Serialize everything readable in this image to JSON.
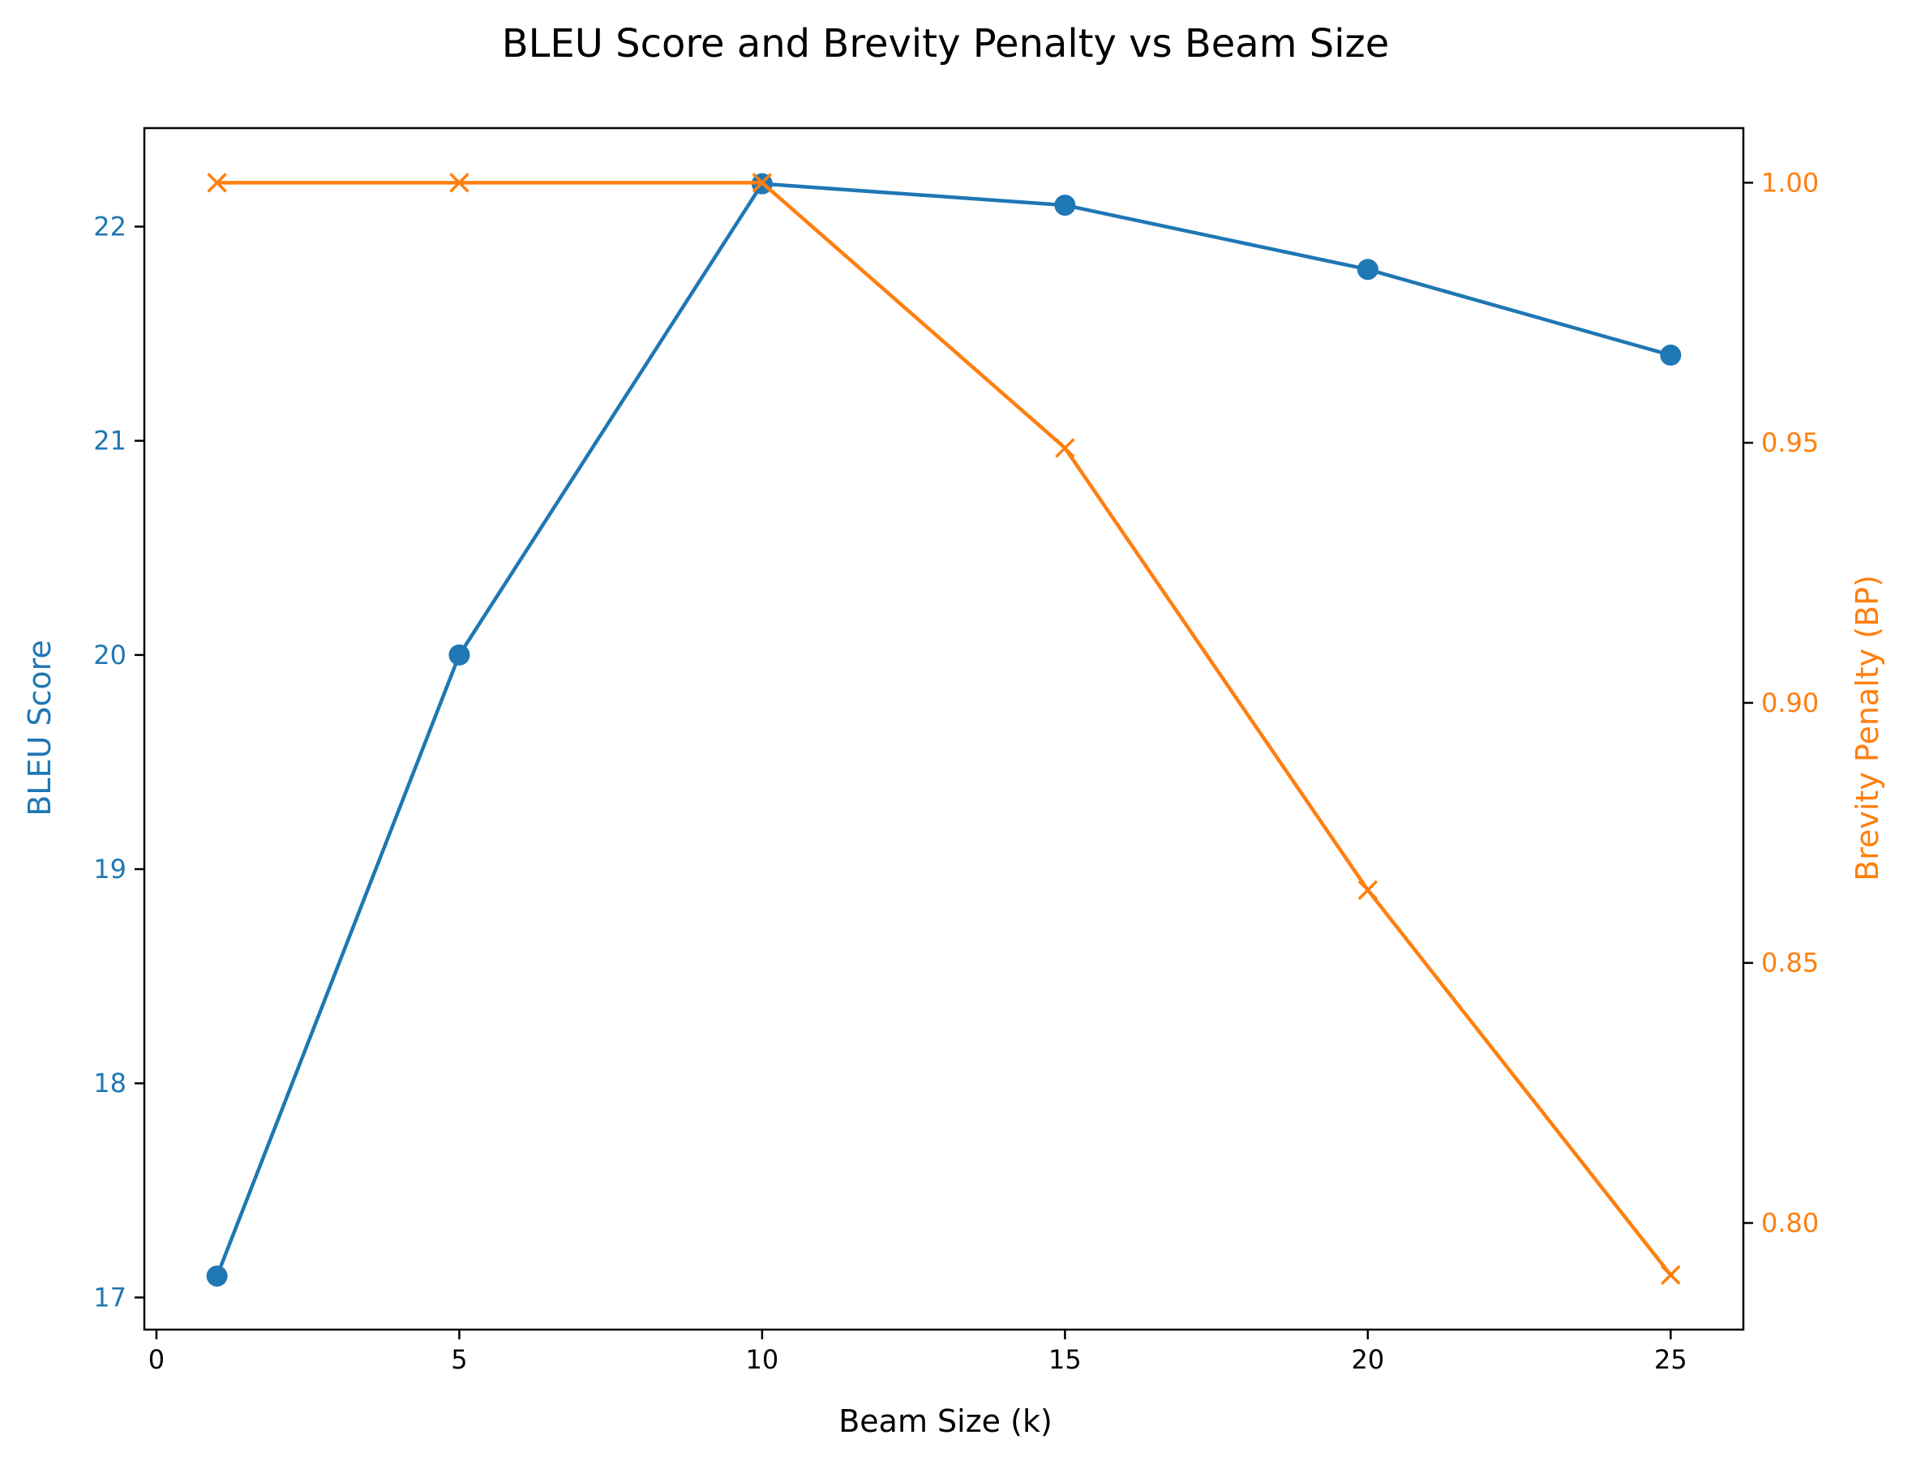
{
  "colors": {
    "bleu": "#1f77b4",
    "bp": "#ff7f0e",
    "axis": "#000000"
  },
  "chart_data": {
    "type": "line",
    "title": "BLEU Score and Brevity Penalty vs Beam Size",
    "xlabel": "Beam Size (k)",
    "ylabel": "BLEU Score",
    "ylabel_right": "Brevity Penalty (BP)",
    "x": [
      1,
      5,
      10,
      15,
      20,
      25
    ],
    "xlim": [
      -0.2,
      26.2
    ],
    "xticks": [
      0,
      5,
      10,
      15,
      20,
      25
    ],
    "xtick_labels": [
      "0",
      "5",
      "10",
      "15",
      "20",
      "25"
    ],
    "ylim": [
      16.85,
      22.46
    ],
    "yticks": [
      17,
      18,
      19,
      20,
      21,
      22
    ],
    "ytick_labels": [
      "17",
      "18",
      "19",
      "20",
      "21",
      "22"
    ],
    "ylim_right": [
      0.7795,
      1.0105
    ],
    "yticks_right": [
      0.8,
      0.85,
      0.9,
      0.95,
      1.0
    ],
    "ytick_labels_right": [
      "0.80",
      "0.85",
      "0.90",
      "0.95",
      "1.00"
    ],
    "grid": false,
    "series": [
      {
        "key": "bleu",
        "axis": "left",
        "marker": "circle",
        "color": "#1f77b4",
        "values": [
          17.1,
          20.0,
          22.2,
          22.1,
          21.8,
          21.4
        ]
      },
      {
        "key": "bp",
        "axis": "right",
        "marker": "x",
        "color": "#ff7f0e",
        "values": [
          1.0,
          1.0,
          1.0,
          0.949,
          0.864,
          0.79
        ]
      }
    ]
  }
}
